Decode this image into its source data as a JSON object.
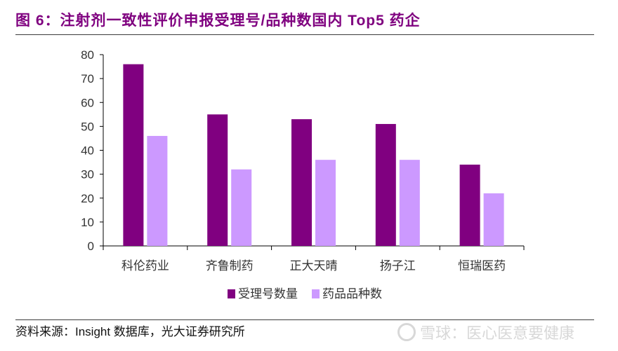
{
  "figure": {
    "title": "图 6：注射剂一致性评价申报受理号/品种数国内 Top5 药企",
    "source": "资料来源：Insight 数据库，光大证券研究所",
    "watermark": "雪球：医心医意要健康"
  },
  "colors": {
    "title": "#7f007f",
    "series_1": "#800080",
    "series_2": "#cc99ff",
    "axis": "#000000"
  },
  "chart_data": {
    "type": "bar",
    "categories": [
      "科伦药业",
      "齐鲁制药",
      "正大天晴",
      "扬子江",
      "恒瑞医药"
    ],
    "series": [
      {
        "name": "受理号数量",
        "values": [
          76,
          55,
          53,
          51,
          34
        ]
      },
      {
        "name": "药品品种数",
        "values": [
          46,
          32,
          36,
          36,
          22
        ]
      }
    ],
    "ylim": [
      0,
      80
    ],
    "yticks": [
      0,
      10,
      20,
      30,
      40,
      50,
      60,
      70,
      80
    ],
    "grid": false,
    "legend": "bottom"
  }
}
